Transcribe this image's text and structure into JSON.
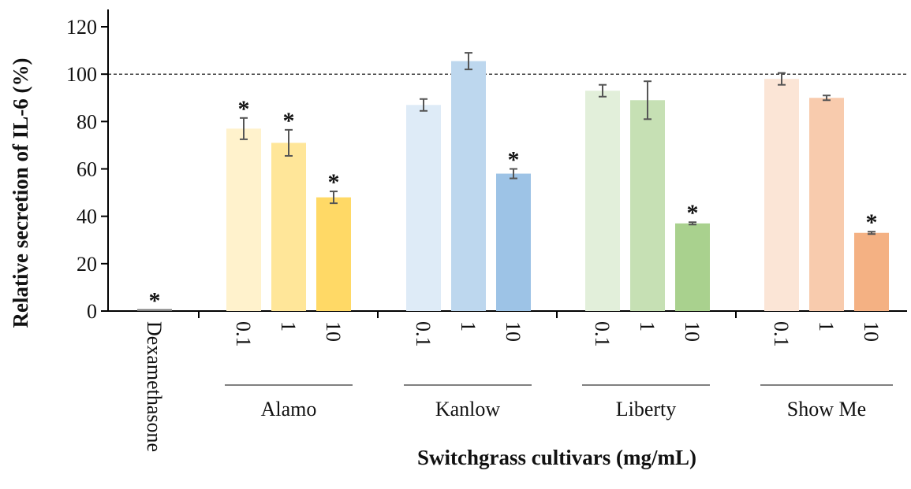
{
  "chart_data": {
    "type": "bar",
    "xlabel": "Switchgrass cultivars (mg/mL)",
    "ylabel": "Relative secretion of IL-6 (%)",
    "ylim": [
      0,
      120
    ],
    "yticks": [
      0,
      20,
      40,
      60,
      80,
      100,
      120
    ],
    "reference_line": {
      "value": 100,
      "style": "dashed"
    },
    "grid": false,
    "legend": "none",
    "significance_marker": "*",
    "bars": [
      {
        "group": "",
        "label": "Dexamethasone",
        "value": 0.5,
        "error": 0,
        "significant": true,
        "color": "#7f7f7f"
      },
      {
        "group": "Alamo",
        "label": "0.1",
        "value": 77,
        "error": 4.5,
        "significant": true,
        "color": "#FFF2CC"
      },
      {
        "group": "Alamo",
        "label": "1",
        "value": 71,
        "error": 5.5,
        "significant": true,
        "color": "#FFE699"
      },
      {
        "group": "Alamo",
        "label": "10",
        "value": 48,
        "error": 2.5,
        "significant": true,
        "color": "#FFD966"
      },
      {
        "group": "Kanlow",
        "label": "0.1",
        "value": 87,
        "error": 2.5,
        "significant": false,
        "color": "#DEEBF7"
      },
      {
        "group": "Kanlow",
        "label": "1",
        "value": 105.5,
        "error": 3.5,
        "significant": false,
        "color": "#BDD7EE"
      },
      {
        "group": "Kanlow",
        "label": "10",
        "value": 58,
        "error": 2,
        "significant": true,
        "color": "#9DC3E6"
      },
      {
        "group": "Liberty",
        "label": "0.1",
        "value": 93,
        "error": 2.5,
        "significant": false,
        "color": "#E2EFDA"
      },
      {
        "group": "Liberty",
        "label": "1",
        "value": 89,
        "error": 8,
        "significant": false,
        "color": "#C6E0B4"
      },
      {
        "group": "Liberty",
        "label": "10",
        "value": 37,
        "error": 0.5,
        "significant": true,
        "color": "#A9D18E"
      },
      {
        "group": "Show Me",
        "label": "0.1",
        "value": 98,
        "error": 2.5,
        "significant": false,
        "color": "#FBE5D6"
      },
      {
        "group": "Show Me",
        "label": "1",
        "value": 90,
        "error": 1,
        "significant": false,
        "color": "#F8CBAD"
      },
      {
        "group": "Show Me",
        "label": "10",
        "value": 33,
        "error": 0.5,
        "significant": true,
        "color": "#F4B183"
      }
    ],
    "groups": [
      "Alamo",
      "Kanlow",
      "Liberty",
      "Show Me"
    ]
  }
}
